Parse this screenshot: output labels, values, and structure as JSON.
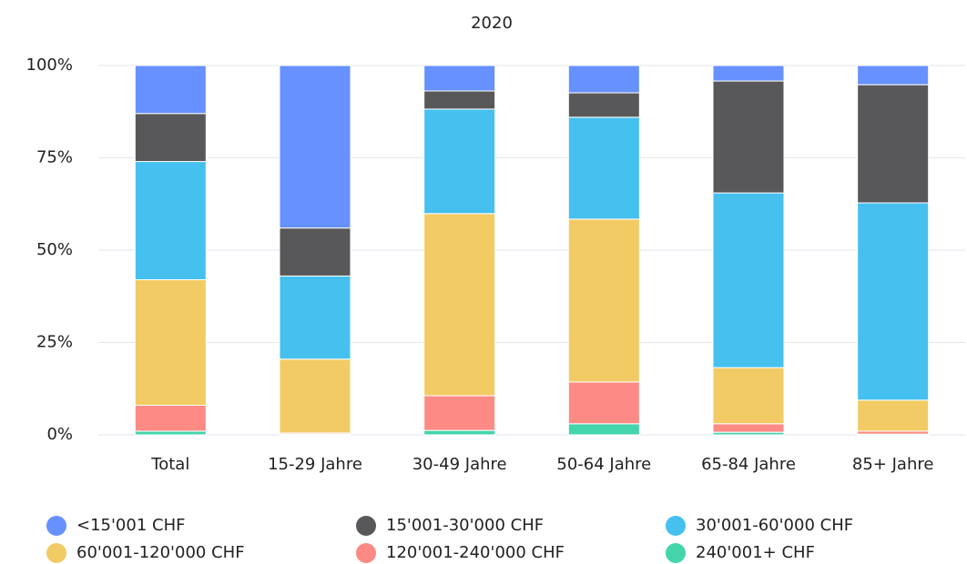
{
  "chart_data": {
    "type": "stacked_bar",
    "title": "2020",
    "categories": [
      "Total",
      "15-29 Jahre",
      "30-49 Jahre",
      "50-64 Jahre",
      "65-84 Jahre",
      "85+ Jahre"
    ],
    "series": [
      {
        "name": "240'001+ CHF",
        "color": "#44d5ac",
        "values": [
          1,
          0.2,
          1.2,
          3,
          0.7,
          0.2
        ]
      },
      {
        "name": "120'001-240'000 CHF",
        "color": "#fd8a85",
        "values": [
          7,
          0.3,
          9.4,
          11.3,
          2.3,
          0.8
        ]
      },
      {
        "name": "60'001-120'000 CHF",
        "color": "#f2cb65",
        "values": [
          34,
          20,
          49.3,
          44.1,
          15.2,
          8.4
        ]
      },
      {
        "name": "30'001-60'000 CHF",
        "color": "#45c0ef",
        "values": [
          32,
          22.5,
          28.3,
          27.6,
          47.3,
          53.4
        ]
      },
      {
        "name": "15'001-30'000 CHF",
        "color": "#58585a",
        "values": [
          13,
          13,
          4.9,
          6.6,
          30.3,
          32
        ]
      },
      {
        "name": "<15'001 CHF",
        "color": "#6691ff",
        "values": [
          13,
          44,
          6.9,
          7.4,
          4.2,
          5.2
        ]
      }
    ],
    "ylim": [
      0,
      100
    ],
    "yticks": [
      {
        "value": 0,
        "label": "0%"
      },
      {
        "value": 25,
        "label": "25%"
      },
      {
        "value": 50,
        "label": "50%"
      },
      {
        "value": 75,
        "label": "75%"
      },
      {
        "value": 100,
        "label": "100%"
      }
    ],
    "grid": true
  }
}
